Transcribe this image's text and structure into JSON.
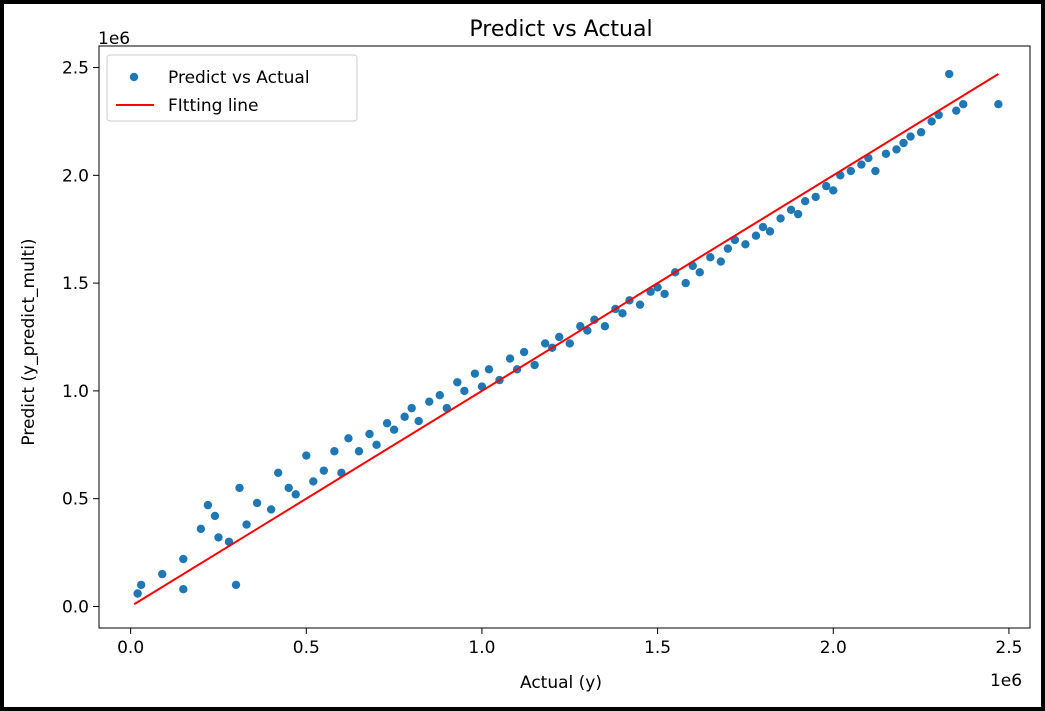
{
  "chart_data": {
    "type": "scatter",
    "title": "Predict vs Actual",
    "xlabel": "Actual (y)",
    "ylabel": "Predict (y_predict_multi)",
    "x_offset_label": "1e6",
    "y_offset_label": "1e6",
    "xlim": [
      -0.09,
      2.56
    ],
    "ylim": [
      -0.1,
      2.6
    ],
    "x_ticks": [
      0.0,
      0.5,
      1.0,
      1.5,
      2.0,
      2.5
    ],
    "x_tick_labels": [
      "0.0",
      "0.5",
      "1.0",
      "1.5",
      "2.0",
      "2.5"
    ],
    "y_ticks": [
      0.0,
      0.5,
      1.0,
      1.5,
      2.0,
      2.5
    ],
    "y_tick_labels": [
      "0.0",
      "0.5",
      "1.0",
      "1.5",
      "2.0",
      "2.5"
    ],
    "grid": false,
    "legend_position": "upper-left",
    "series": [
      {
        "name": "Predict vs Actual",
        "kind": "scatter",
        "color": "#1f77b4",
        "x": [
          0.02,
          0.03,
          0.09,
          0.15,
          0.15,
          0.3,
          0.22,
          0.2,
          0.25,
          0.24,
          0.28,
          0.31,
          0.33,
          0.36,
          0.4,
          0.42,
          0.45,
          0.47,
          0.5,
          0.52,
          0.55,
          0.58,
          0.6,
          0.62,
          0.65,
          0.68,
          0.7,
          0.73,
          0.75,
          0.78,
          0.8,
          0.82,
          0.85,
          0.88,
          0.9,
          0.93,
          0.95,
          0.98,
          1.0,
          1.02,
          1.05,
          1.08,
          1.1,
          1.12,
          1.15,
          1.18,
          1.2,
          1.22,
          1.25,
          1.28,
          1.3,
          1.32,
          1.35,
          1.38,
          1.4,
          1.42,
          1.45,
          1.48,
          1.5,
          1.52,
          1.55,
          1.58,
          1.6,
          1.62,
          1.65,
          1.68,
          1.7,
          1.72,
          1.75,
          1.78,
          1.8,
          1.82,
          1.85,
          1.88,
          1.9,
          1.92,
          1.95,
          1.98,
          2.0,
          2.02,
          2.05,
          2.08,
          2.1,
          2.12,
          2.15,
          2.18,
          2.2,
          2.22,
          2.25,
          2.28,
          2.3,
          2.33,
          2.35,
          2.37,
          2.47
        ],
        "y": [
          0.06,
          0.1,
          0.15,
          0.08,
          0.22,
          0.1,
          0.47,
          0.36,
          0.32,
          0.42,
          0.3,
          0.55,
          0.38,
          0.48,
          0.45,
          0.62,
          0.55,
          0.52,
          0.7,
          0.58,
          0.63,
          0.72,
          0.62,
          0.78,
          0.72,
          0.8,
          0.75,
          0.85,
          0.82,
          0.88,
          0.92,
          0.86,
          0.95,
          0.98,
          0.92,
          1.04,
          1.0,
          1.08,
          1.02,
          1.1,
          1.05,
          1.15,
          1.1,
          1.18,
          1.12,
          1.22,
          1.2,
          1.25,
          1.22,
          1.3,
          1.28,
          1.33,
          1.3,
          1.38,
          1.36,
          1.42,
          1.4,
          1.46,
          1.48,
          1.45,
          1.55,
          1.5,
          1.58,
          1.55,
          1.62,
          1.6,
          1.66,
          1.7,
          1.68,
          1.72,
          1.76,
          1.74,
          1.8,
          1.84,
          1.82,
          1.88,
          1.9,
          1.95,
          1.93,
          2.0,
          2.02,
          2.05,
          2.08,
          2.02,
          2.1,
          2.12,
          2.15,
          2.18,
          2.2,
          2.25,
          2.28,
          2.47,
          2.3,
          2.33,
          2.33
        ]
      },
      {
        "name": "FItting line",
        "kind": "line",
        "color": "#ff0000",
        "x": [
          0.01,
          2.47
        ],
        "y": [
          0.01,
          2.47
        ]
      }
    ]
  }
}
